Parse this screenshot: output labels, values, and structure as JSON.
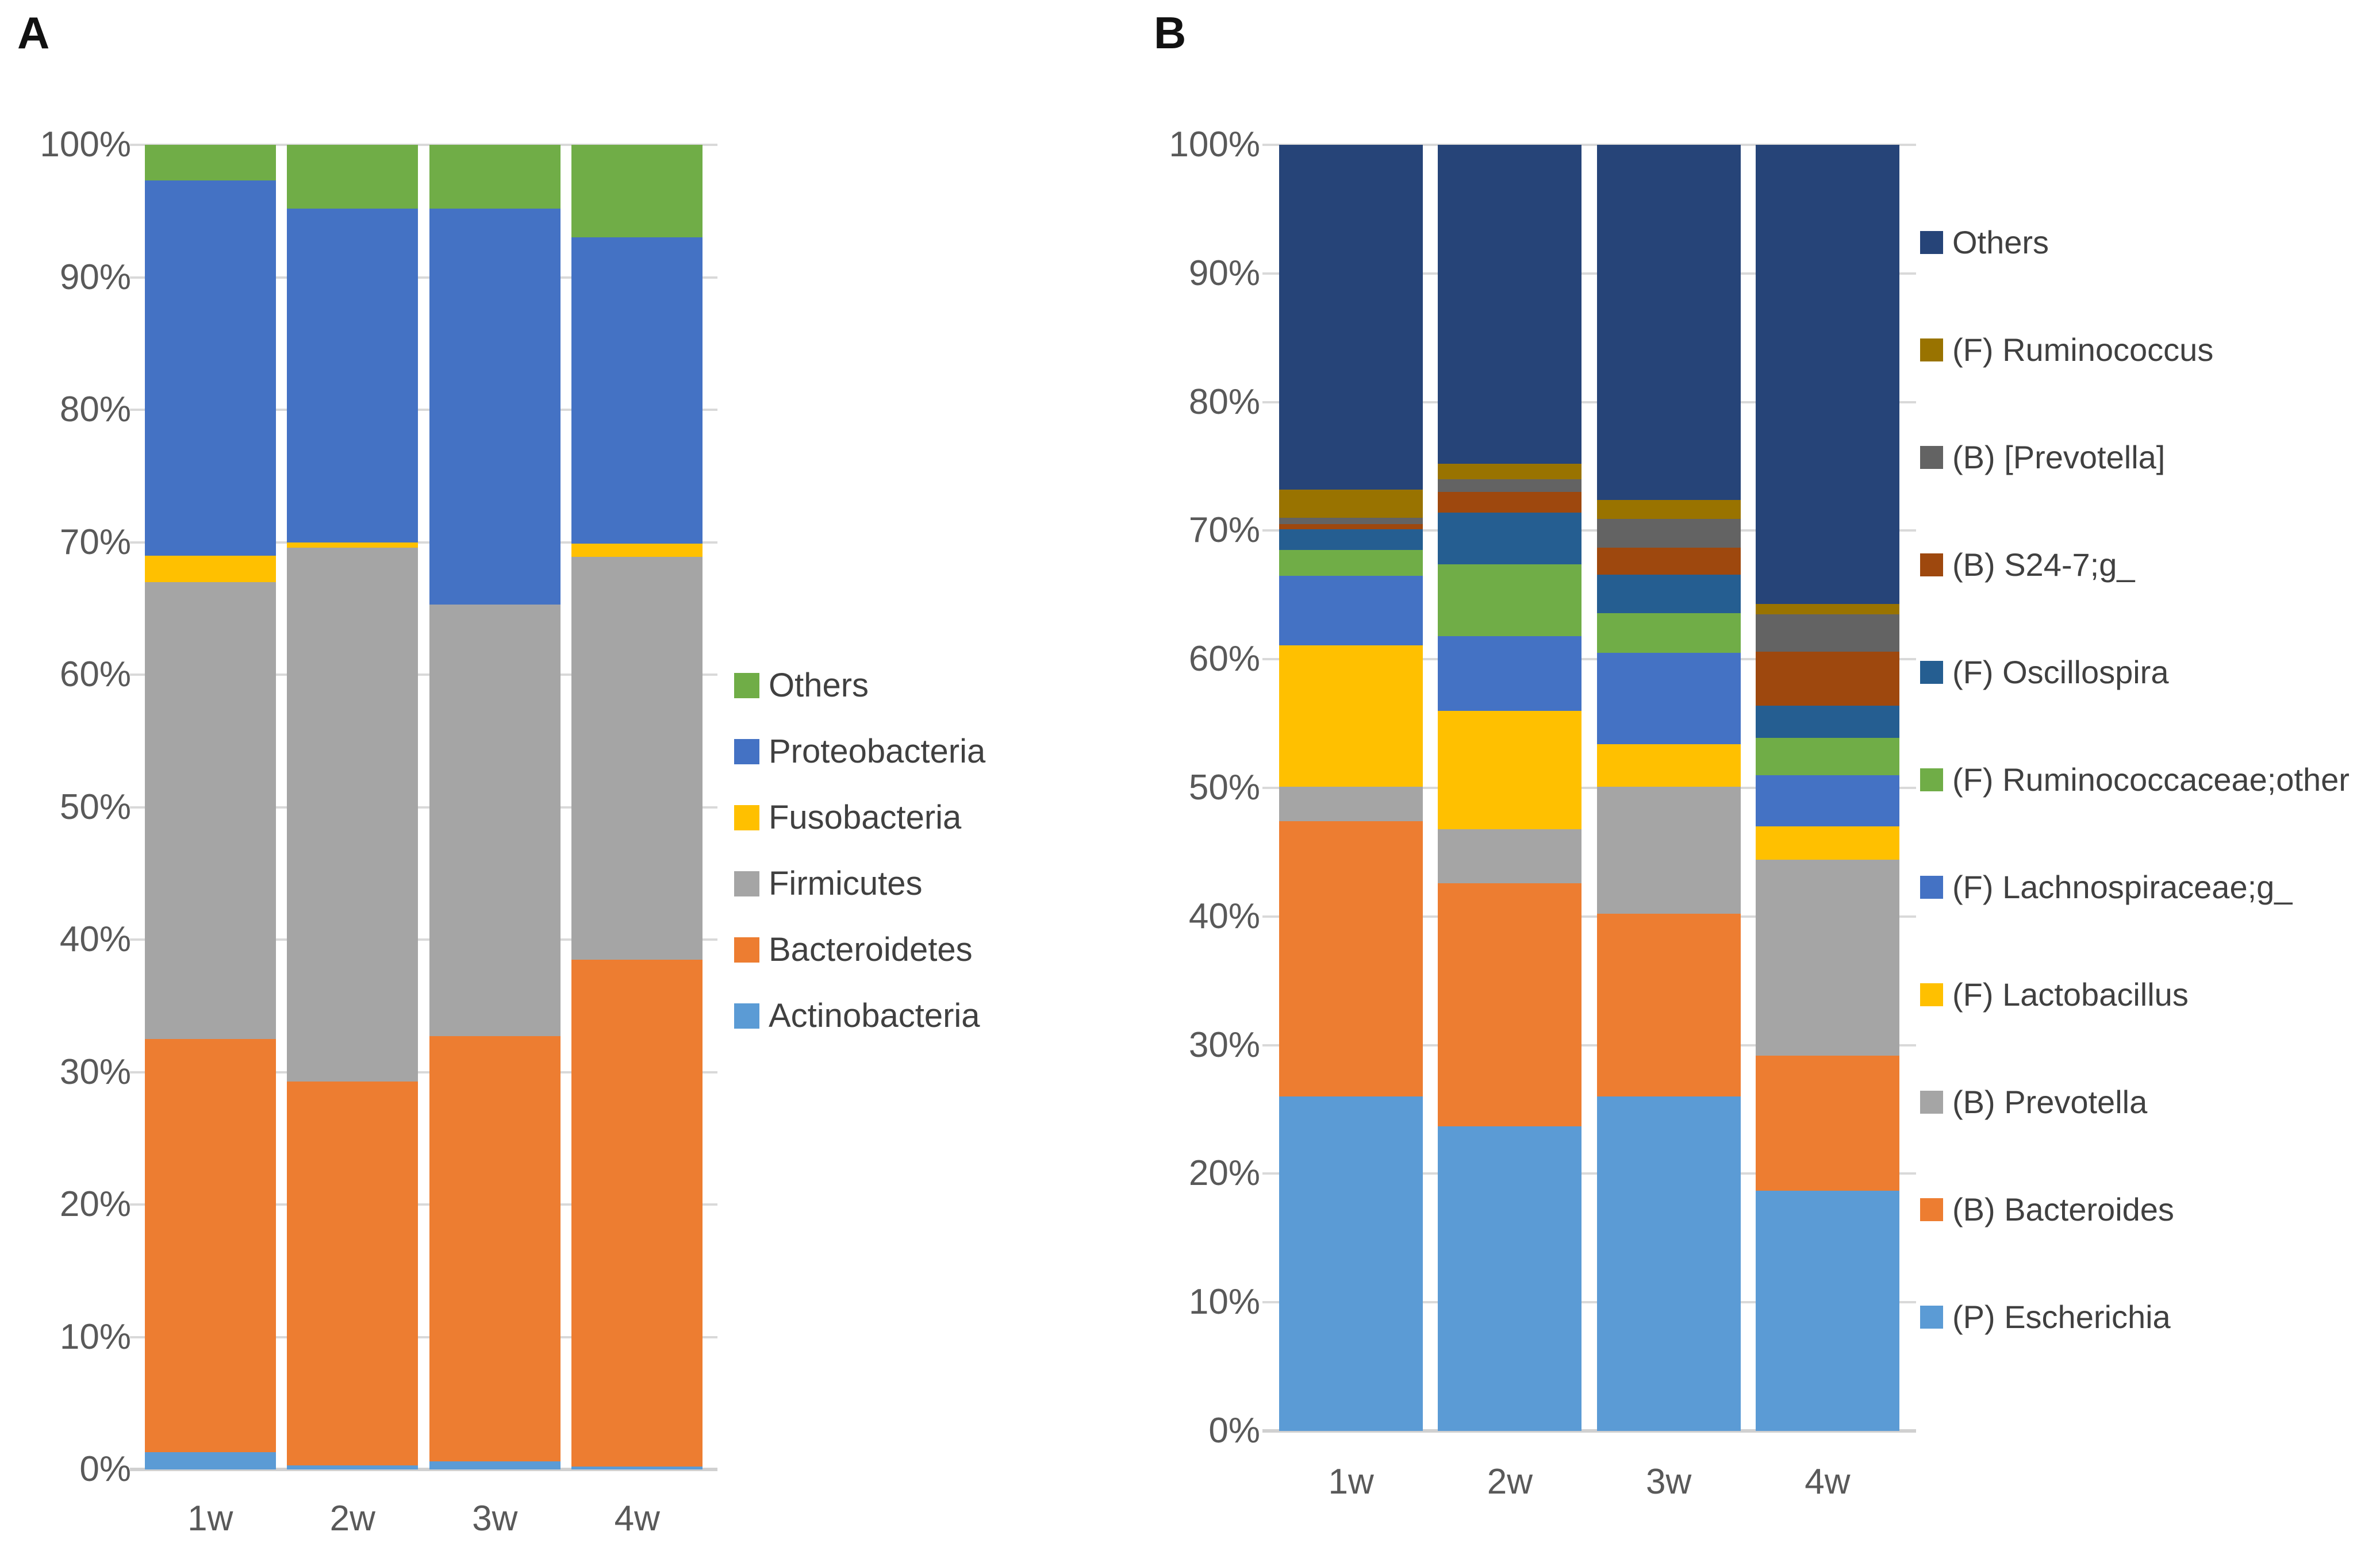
{
  "figure": {
    "panel_a_label": "A",
    "panel_b_label": "B"
  },
  "style_colors": {
    "axis_text": "#595959",
    "legend_text": "#404040",
    "gridline": "#d9d9d9",
    "axis_line": "#d0d0d0",
    "background": "#ffffff"
  },
  "chart_data": [
    {
      "type": "bar",
      "stacked": true,
      "panel": "A",
      "title": "",
      "xlabel": "",
      "ylabel": "",
      "units": "percent",
      "ylim": [
        0,
        100
      ],
      "grid": true,
      "legend_position": "right-middle",
      "categories": [
        "1w",
        "2w",
        "3w",
        "4w"
      ],
      "y_ticks": [
        "0%",
        "10%",
        "20%",
        "30%",
        "40%",
        "50%",
        "60%",
        "70%",
        "80%",
        "90%",
        "100%"
      ],
      "series": [
        {
          "name": "Actinobacteria",
          "color": "#5B9BD5",
          "values": [
            1.3,
            0.3,
            0.6,
            0.2
          ]
        },
        {
          "name": "Bacteroidetes",
          "color": "#ED7D31",
          "values": [
            31.2,
            29.0,
            32.1,
            38.3
          ]
        },
        {
          "name": "Firmicutes",
          "color": "#A5A5A5",
          "values": [
            34.5,
            40.3,
            32.6,
            30.4
          ]
        },
        {
          "name": "Fusobacteria",
          "color": "#FFC000",
          "values": [
            2.0,
            0.4,
            0.0,
            1.0
          ]
        },
        {
          "name": "Proteobacteria",
          "color": "#4472C4",
          "values": [
            28.3,
            25.2,
            29.9,
            23.1
          ]
        },
        {
          "name": "Others",
          "color": "#70AD47",
          "values": [
            2.7,
            4.8,
            4.8,
            7.0
          ]
        }
      ],
      "legend_note": "legend lists series top-to-bottom in reverse stacking order"
    },
    {
      "type": "bar",
      "stacked": true,
      "panel": "B",
      "title": "",
      "xlabel": "",
      "ylabel": "",
      "units": "percent",
      "ylim": [
        0,
        100
      ],
      "grid": true,
      "legend_position": "right-full-height",
      "categories": [
        "1w",
        "2w",
        "3w",
        "4w"
      ],
      "y_ticks": [
        "0%",
        "10%",
        "20%",
        "30%",
        "40%",
        "50%",
        "60%",
        "70%",
        "80%",
        "90%",
        "100%"
      ],
      "series": [
        {
          "name": "(P) Escherichia",
          "color": "#5B9BD5",
          "values": [
            26.0,
            23.7,
            26.0,
            18.7
          ]
        },
        {
          "name": "(B) Bacteroides",
          "color": "#ED7D31",
          "values": [
            21.4,
            18.9,
            14.2,
            10.5
          ]
        },
        {
          "name": "(B) Prevotella",
          "color": "#A5A5A5",
          "values": [
            2.7,
            4.2,
            9.9,
            15.2
          ]
        },
        {
          "name": "(F) Lactobacillus",
          "color": "#FFC000",
          "values": [
            11.0,
            9.2,
            3.3,
            2.6
          ]
        },
        {
          "name": "(F) Lachnospiraceae;g_",
          "color": "#4472C4",
          "values": [
            5.4,
            5.8,
            7.1,
            4.0
          ]
        },
        {
          "name": "(F) Ruminococcaceae;other",
          "color": "#70AD47",
          "values": [
            2.0,
            5.6,
            3.1,
            2.9
          ]
        },
        {
          "name": "(F) Oscillospira",
          "color": "#255E91",
          "values": [
            1.6,
            4.0,
            3.0,
            2.5
          ]
        },
        {
          "name": "(B) S24-7;g_",
          "color": "#9E480E",
          "values": [
            0.4,
            1.6,
            2.1,
            4.2
          ]
        },
        {
          "name": "(B) [Prevotella]",
          "color": "#636363",
          "values": [
            0.5,
            1.0,
            2.2,
            2.9
          ]
        },
        {
          "name": "(F) Ruminococcus",
          "color": "#997300",
          "values": [
            2.2,
            1.2,
            1.5,
            0.8
          ]
        },
        {
          "name": "Others",
          "color": "#264478",
          "values": [
            26.8,
            24.8,
            27.6,
            35.7
          ]
        }
      ],
      "legend_note": "legend lists series top-to-bottom in reverse stacking order"
    }
  ]
}
